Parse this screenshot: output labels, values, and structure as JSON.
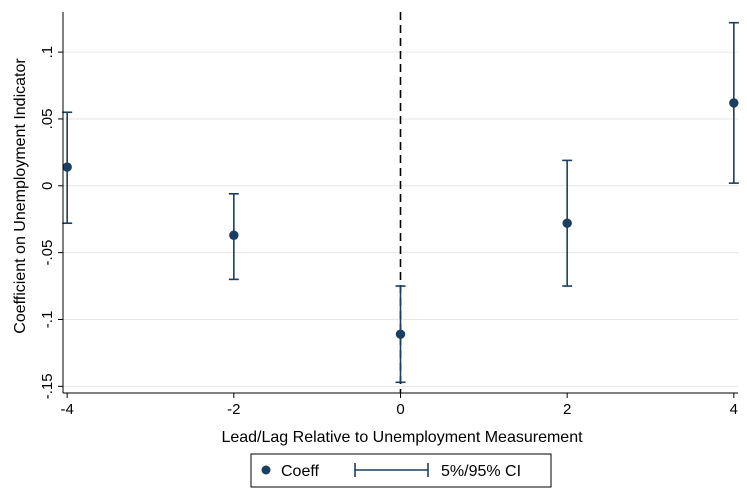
{
  "chart_data": {
    "type": "scatter",
    "xlabel": "Lead/Lag Relative to Unemployment Measurement",
    "ylabel": "Coefficient on Unemployment Indicator",
    "xlim": [
      -4.05,
      4.05
    ],
    "ylim": [
      -0.155,
      0.13
    ],
    "xticks": [
      -4,
      -2,
      0,
      2,
      4
    ],
    "xtick_labels": [
      "-4",
      "-2",
      "0",
      "2",
      "4"
    ],
    "yticks": [
      -0.15,
      -0.1,
      -0.05,
      0,
      0.05,
      0.1
    ],
    "ytick_labels": [
      "-.15",
      "-.1",
      "-.05",
      "0",
      ".05",
      ".1"
    ],
    "grid": "horizontal",
    "reference_line": {
      "x": 0,
      "style": "dashed"
    },
    "series": [
      {
        "name": "Coeff",
        "type": "scatter",
        "color": "#1a3f60",
        "x": [
          -4,
          -2,
          0,
          2,
          4
        ],
        "y": [
          0.014,
          -0.037,
          -0.111,
          -0.028,
          0.062
        ]
      },
      {
        "name": "5%/95% CI",
        "type": "capped-range",
        "color": "#1a3f60",
        "x": [
          -4,
          -2,
          0,
          2,
          4
        ],
        "lower": [
          -0.028,
          -0.07,
          -0.147,
          -0.075,
          0.002
        ],
        "upper": [
          0.055,
          -0.006,
          -0.075,
          0.019,
          0.122
        ]
      }
    ],
    "legend": {
      "position": "bottom-center",
      "items": [
        "Coeff",
        "5%/95% CI"
      ]
    }
  }
}
